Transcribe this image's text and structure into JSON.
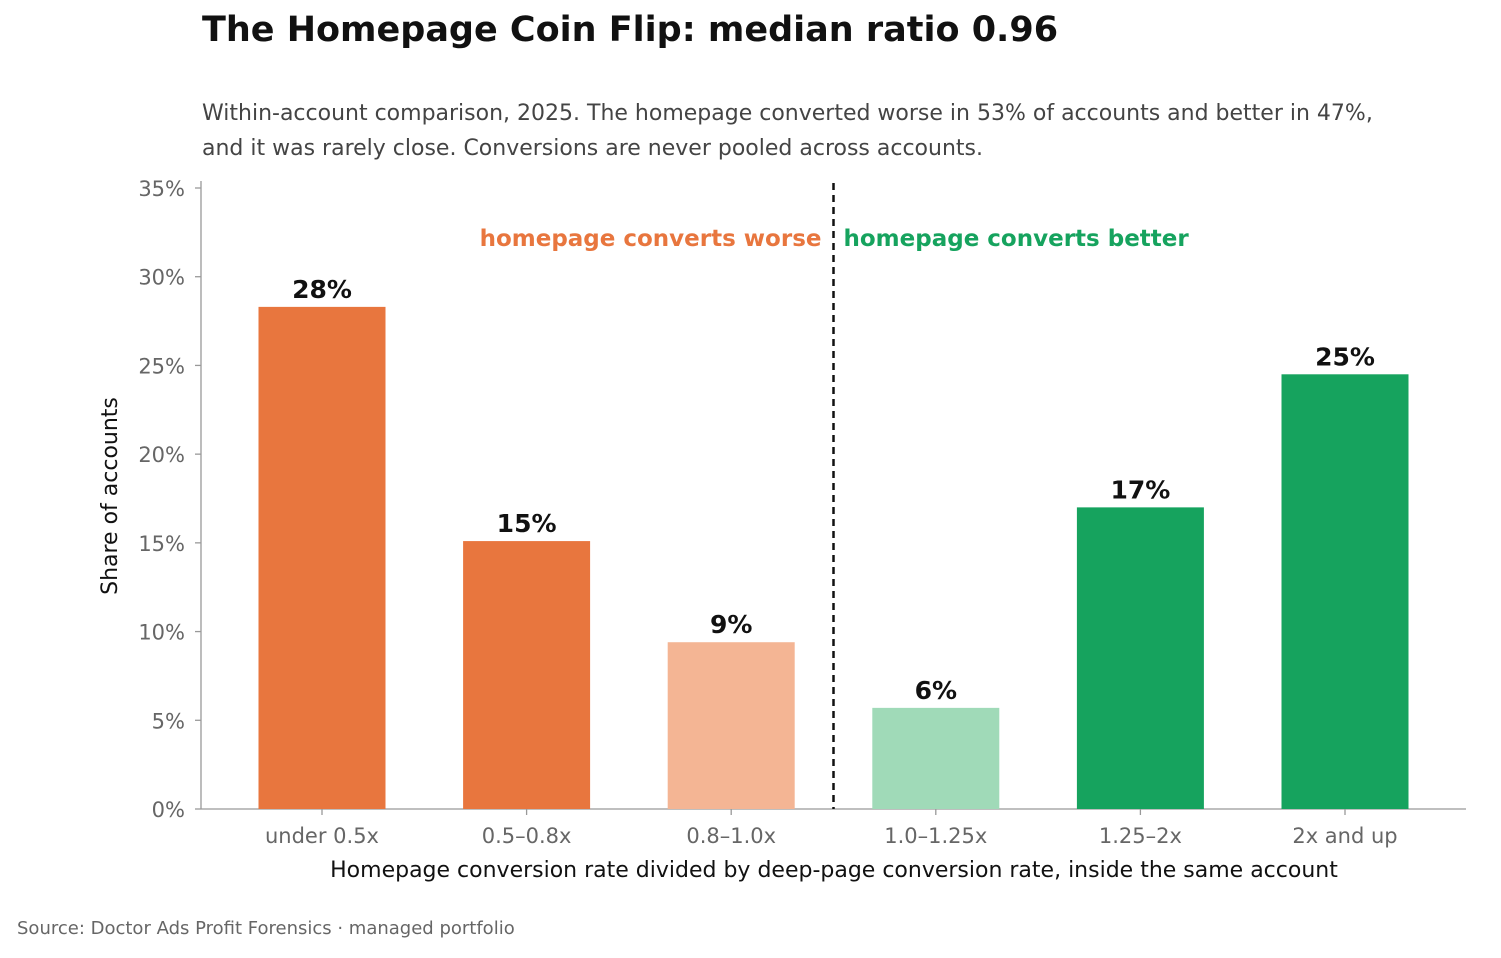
{
  "chart_data": {
    "type": "bar",
    "title": "The Homepage Coin Flip: median ratio 0.96",
    "subtitle_lines": [
      "Within-account comparison, 2025. The homepage converted worse in 53% of accounts and better in 47%,",
      "and it was rarely close. Conversions are never pooled across accounts."
    ],
    "categories": [
      "under 0.5x",
      "0.5–0.8x",
      "0.8–1.0x",
      "1.0–1.25x",
      "1.25–2x",
      "2x and up"
    ],
    "values": [
      28.3,
      15.1,
      9.4,
      5.7,
      17.0,
      24.5
    ],
    "value_labels": [
      "28%",
      "15%",
      "9%",
      "6%",
      "17%",
      "25%"
    ],
    "bar_colors": [
      "#e8763e",
      "#e8763e",
      "#f4b594",
      "#a0dab8",
      "#16a35e",
      "#16a35e"
    ],
    "xlabel": "Homepage conversion rate divided by deep-page conversion rate, inside the same account",
    "ylabel": "Share of accounts",
    "ylim": [
      0,
      35
    ],
    "yticks": [
      0,
      5,
      10,
      15,
      20,
      25,
      30,
      35
    ],
    "ytick_labels": [
      "0%",
      "5%",
      "10%",
      "15%",
      "20%",
      "25%",
      "30%",
      "35%"
    ],
    "grid": false,
    "divider": {
      "style": "dashed",
      "between": [
        "0.8–1.0x",
        "1.0–1.25x"
      ]
    },
    "annotations": [
      {
        "text": "homepage converts worse",
        "color": "#e8763e",
        "side": "left"
      },
      {
        "text": "homepage converts better",
        "color": "#16a35e",
        "side": "right"
      }
    ]
  },
  "source": "Source: Doctor Ads Profit Forensics · managed portfolio"
}
